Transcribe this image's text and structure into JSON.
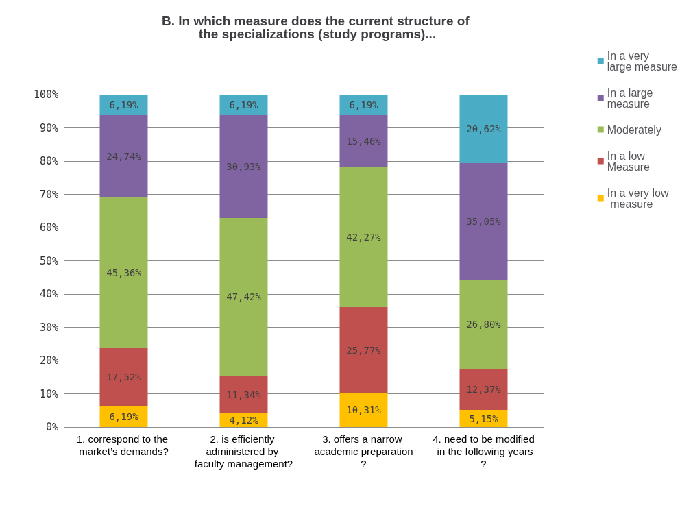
{
  "chart_data": {
    "type": "bar",
    "stacked": true,
    "title": "B. In which measure does the current structure of the specializations (study programs)...",
    "categories": [
      "1. correspond to the market’s demands?",
      "2. is efficiently administered by faculty management?",
      "3. offers a narrow academic preparation?",
      "4. need to be modified in the following years?"
    ],
    "series": [
      {
        "name": "In a very low measure",
        "color": "#ffc000",
        "values": [
          6.19,
          4.12,
          10.31,
          5.15
        ],
        "value_labels": [
          "6,19%",
          "4,12%",
          "10,31%",
          "5,15%"
        ]
      },
      {
        "name": "In a low Measure",
        "color": "#c0504d",
        "values": [
          17.52,
          11.34,
          25.77,
          12.37
        ],
        "value_labels": [
          "17,52%",
          "11,34%",
          "25,77%",
          "12,37%"
        ]
      },
      {
        "name": "Moderately",
        "color": "#9bbb59",
        "values": [
          45.36,
          47.42,
          42.27,
          26.8
        ],
        "value_labels": [
          "45,36%",
          "47,42%",
          "42,27%",
          "26,80%"
        ]
      },
      {
        "name": "In a large measure",
        "color": "#8064a2",
        "values": [
          24.74,
          30.93,
          15.46,
          35.05
        ],
        "value_labels": [
          "24,74%",
          "30,93%",
          "15,46%",
          "35,05%"
        ]
      },
      {
        "name": "In a very large measure",
        "color": "#4bacc6",
        "values": [
          6.19,
          6.19,
          6.19,
          20.62
        ],
        "value_labels": [
          "6,19%",
          "6,19%",
          "6,19%",
          "20,62%"
        ]
      }
    ],
    "ylim": [
      0,
      100
    ],
    "yticks": [
      {
        "value": 0,
        "label": "0%"
      },
      {
        "value": 10,
        "label": "10%"
      },
      {
        "value": 20,
        "label": "20%"
      },
      {
        "value": 30,
        "label": "30%"
      },
      {
        "value": 40,
        "label": "40%"
      },
      {
        "value": 50,
        "label": "50%"
      },
      {
        "value": 60,
        "label": "60%"
      },
      {
        "value": 70,
        "label": "70%"
      },
      {
        "value": 80,
        "label": "80%"
      },
      {
        "value": 90,
        "label": "90%"
      },
      {
        "value": 100,
        "label": "100%"
      }
    ],
    "grid": "y",
    "legend": "right"
  }
}
